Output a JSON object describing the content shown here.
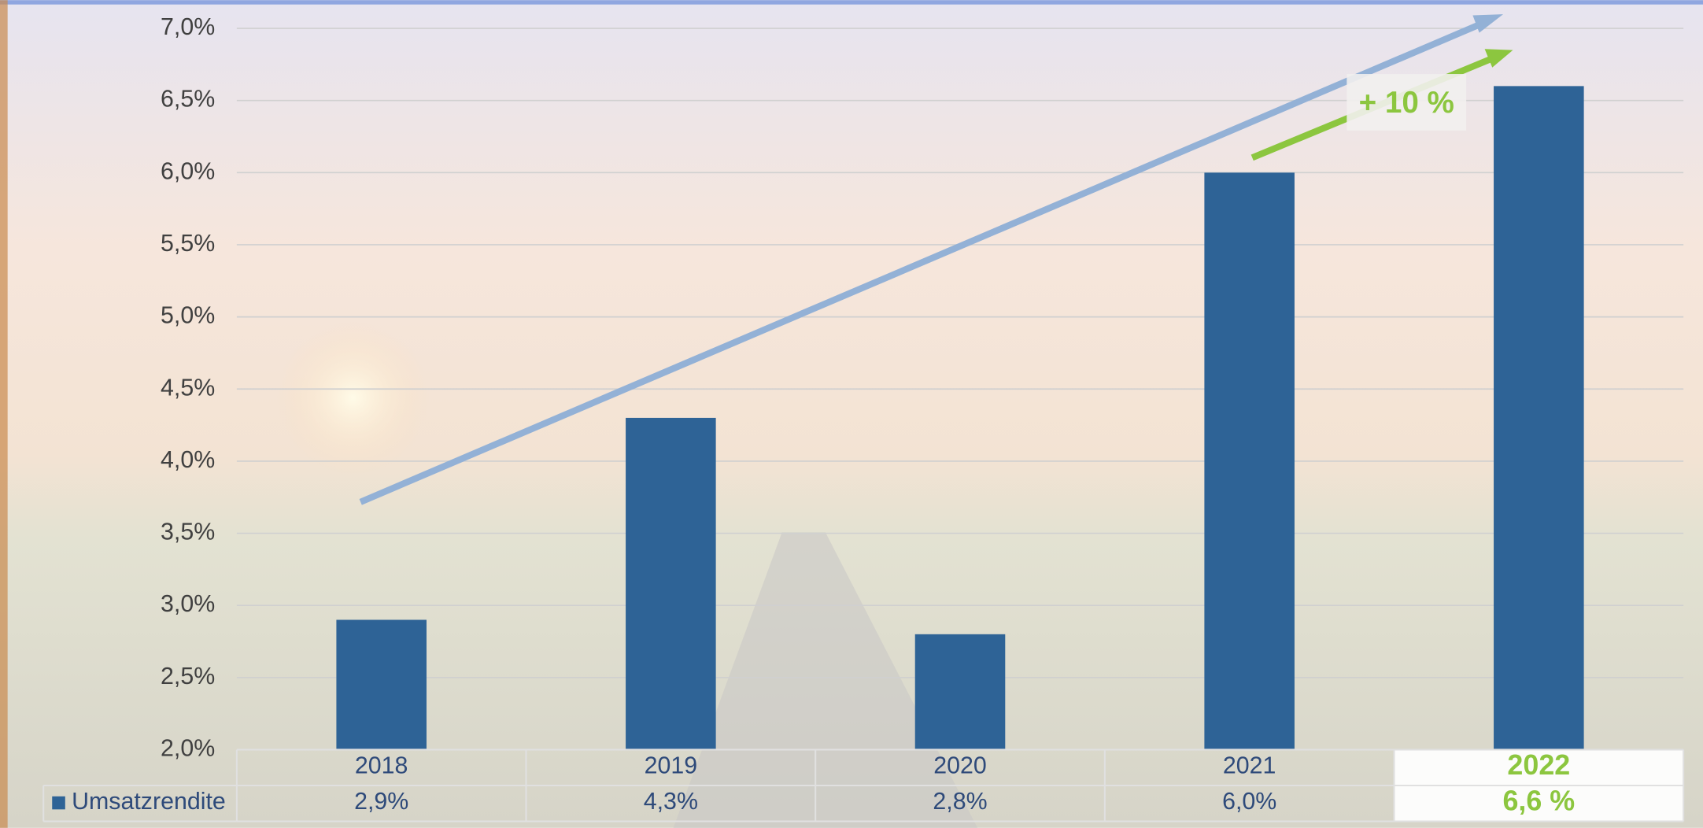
{
  "chart_data": {
    "type": "bar",
    "categories": [
      "2018",
      "2019",
      "2020",
      "2021",
      "2022"
    ],
    "series": [
      {
        "name": "Umsatzrendite",
        "color": "#2e6396",
        "values": [
          2.9,
          4.3,
          2.8,
          6.0,
          6.6
        ],
        "value_labels": [
          "2,9%",
          "4,3%",
          "2,8%",
          "6,0%",
          "6,6 %"
        ]
      }
    ],
    "ylim": [
      2.0,
      7.0
    ],
    "yticks": [
      {
        "value": 2.0,
        "label": "2,0%"
      },
      {
        "value": 2.5,
        "label": "2,5%"
      },
      {
        "value": 3.0,
        "label": "3,0%"
      },
      {
        "value": 3.5,
        "label": "3,5%"
      },
      {
        "value": 4.0,
        "label": "4,0%"
      },
      {
        "value": 4.5,
        "label": "4,5%"
      },
      {
        "value": 5.0,
        "label": "5,0%"
      },
      {
        "value": 5.5,
        "label": "5,5%"
      },
      {
        "value": 6.0,
        "label": "6,0%"
      },
      {
        "value": 6.5,
        "label": "6,5%"
      },
      {
        "value": 7.0,
        "label": "7,0%"
      }
    ],
    "grid": true,
    "annotation": "+ 10 %"
  }
}
